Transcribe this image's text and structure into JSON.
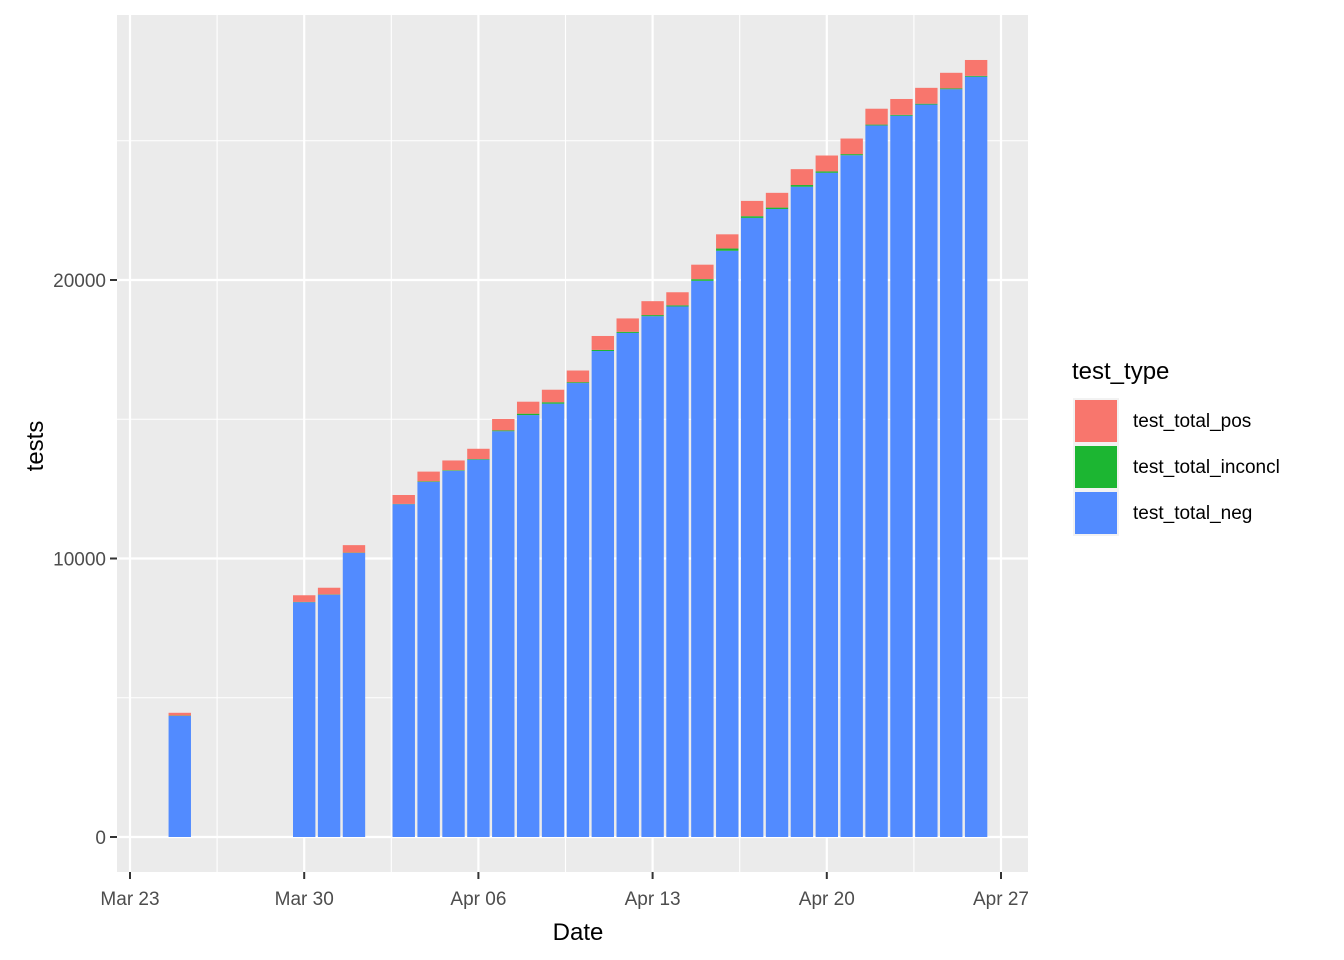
{
  "chart_data": {
    "type": "bar",
    "stacked": true,
    "xlabel": "Date",
    "ylabel": "tests",
    "x_tick_labels": [
      "Mar 23",
      "Mar 30",
      "Apr 06",
      "Apr 13",
      "Apr 20",
      "Apr 27"
    ],
    "x_tick_dates": [
      "2020-03-23",
      "2020-03-30",
      "2020-04-06",
      "2020-04-13",
      "2020-04-20",
      "2020-04-27"
    ],
    "xlim": [
      "2020-03-23",
      "2020-04-27"
    ],
    "y_ticks": [
      0,
      10000,
      20000
    ],
    "y_tick_labels": [
      "0",
      "10000",
      "20000"
    ],
    "ylim": [
      0,
      28000
    ],
    "grid": true,
    "legend": {
      "title": "test_type",
      "position": "right",
      "entries": [
        {
          "label": "test_total_pos",
          "color": "#F8766D"
        },
        {
          "label": "test_total_inconcl",
          "color": "#1CB632"
        },
        {
          "label": "test_total_neg",
          "color": "#528BFF"
        }
      ]
    },
    "dates": [
      "2020-03-25",
      "2020-03-30",
      "2020-03-31",
      "2020-04-01",
      "2020-04-03",
      "2020-04-04",
      "2020-04-05",
      "2020-04-06",
      "2020-04-07",
      "2020-04-08",
      "2020-04-09",
      "2020-04-10",
      "2020-04-11",
      "2020-04-12",
      "2020-04-13",
      "2020-04-14",
      "2020-04-15",
      "2020-04-16",
      "2020-04-17",
      "2020-04-18",
      "2020-04-19",
      "2020-04-20",
      "2020-04-21",
      "2020-04-22",
      "2020-04-23",
      "2020-04-24",
      "2020-04-25",
      "2020-04-26"
    ],
    "series": [
      {
        "name": "test_total_neg",
        "color": "#528BFF",
        "values": [
          4350,
          8430,
          8700,
          10200,
          11950,
          12750,
          13150,
          13550,
          14570,
          15150,
          15560,
          16300,
          17450,
          18100,
          18700,
          19050,
          19970,
          21050,
          22230,
          22550,
          23350,
          23850,
          24480,
          25550,
          25900,
          26300,
          26850,
          27300
        ]
      },
      {
        "name": "test_total_inconcl",
        "color": "#1CB632",
        "values": [
          10,
          10,
          10,
          10,
          10,
          20,
          20,
          20,
          30,
          50,
          50,
          30,
          40,
          40,
          40,
          40,
          60,
          80,
          60,
          50,
          60,
          50,
          40,
          30,
          30,
          30,
          30,
          30
        ]
      },
      {
        "name": "test_total_pos",
        "color": "#F8766D",
        "values": [
          100,
          240,
          240,
          270,
          320,
          350,
          350,
          370,
          410,
          430,
          450,
          420,
          500,
          480,
          500,
          470,
          520,
          510,
          550,
          530,
          570,
          570,
          560,
          570,
          570,
          570,
          560,
          570
        ]
      }
    ]
  }
}
